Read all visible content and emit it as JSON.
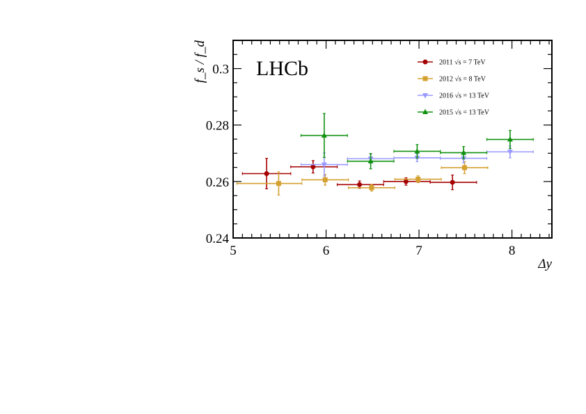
{
  "chart_data": {
    "type": "scatter",
    "title": "",
    "xlabel": "Δy",
    "ylabel": "f_s / f_d",
    "annotation": "LHCb",
    "xlim": [
      5.0,
      8.43
    ],
    "ylim": [
      0.24,
      0.31
    ],
    "x_ticks": [
      "5",
      "6",
      "7",
      "8"
    ],
    "y_ticks": [
      "0.24",
      "0.26",
      "0.28",
      "0.3"
    ],
    "grid": false,
    "legend_position": "top-right",
    "series": [
      {
        "name": "2011 √s = 7 TeV",
        "color": "#a50000",
        "marker": "circle",
        "points": [
          {
            "x": 5.36,
            "xlo": 5.1,
            "xhi": 5.62,
            "y": 0.2628,
            "yerr": 0.0054
          },
          {
            "x": 5.86,
            "xlo": 5.62,
            "xhi": 6.12,
            "y": 0.2652,
            "yerr": 0.0022
          },
          {
            "x": 6.36,
            "xlo": 6.12,
            "xhi": 6.62,
            "y": 0.2589,
            "yerr": 0.0013
          },
          {
            "x": 6.86,
            "xlo": 6.62,
            "xhi": 7.12,
            "y": 0.26,
            "yerr": 0.0013
          },
          {
            "x": 7.36,
            "xlo": 7.12,
            "xhi": 7.62,
            "y": 0.2597,
            "yerr": 0.0026
          }
        ]
      },
      {
        "name": "2012 √s = 8 TeV",
        "color": "#d4a030",
        "marker": "square",
        "points": [
          {
            "x": 5.49,
            "xlo": 5.04,
            "xhi": 5.74,
            "y": 0.2593,
            "yerr": 0.0041
          },
          {
            "x": 5.99,
            "xlo": 5.74,
            "xhi": 6.24,
            "y": 0.2606,
            "yerr": 0.0019
          },
          {
            "x": 6.49,
            "xlo": 6.24,
            "xhi": 6.74,
            "y": 0.2578,
            "yerr": 0.0012
          },
          {
            "x": 6.99,
            "xlo": 6.74,
            "xhi": 7.24,
            "y": 0.2608,
            "yerr": 0.0012
          },
          {
            "x": 7.49,
            "xlo": 7.24,
            "xhi": 7.74,
            "y": 0.2649,
            "yerr": 0.0021
          }
        ]
      },
      {
        "name": "2016 √s = 13 TeV",
        "color": "#9999ff",
        "marker": "triangle-down",
        "points": [
          {
            "x": 5.98,
            "xlo": 5.73,
            "xhi": 6.23,
            "y": 0.266,
            "yerr": 0.0041
          },
          {
            "x": 6.48,
            "xlo": 6.23,
            "xhi": 6.73,
            "y": 0.2681,
            "yerr": 0.0016
          },
          {
            "x": 6.98,
            "xlo": 6.73,
            "xhi": 7.23,
            "y": 0.2684,
            "yerr": 0.0014
          },
          {
            "x": 7.48,
            "xlo": 7.23,
            "xhi": 7.73,
            "y": 0.2682,
            "yerr": 0.0016
          },
          {
            "x": 7.98,
            "xlo": 7.73,
            "xhi": 8.23,
            "y": 0.2705,
            "yerr": 0.0021
          }
        ]
      },
      {
        "name": "2015 √s = 13 TeV",
        "color": "#109010",
        "marker": "triangle-up",
        "points": [
          {
            "x": 5.98,
            "xlo": 5.73,
            "xhi": 6.23,
            "y": 0.2763,
            "yerr": 0.0078
          },
          {
            "x": 6.48,
            "xlo": 6.23,
            "xhi": 6.73,
            "y": 0.2672,
            "yerr": 0.0027
          },
          {
            "x": 6.98,
            "xlo": 6.73,
            "xhi": 7.23,
            "y": 0.2707,
            "yerr": 0.0024
          },
          {
            "x": 7.48,
            "xlo": 7.23,
            "xhi": 7.73,
            "y": 0.2702,
            "yerr": 0.0022
          },
          {
            "x": 7.98,
            "xlo": 7.73,
            "xhi": 8.23,
            "y": 0.2749,
            "yerr": 0.0032
          }
        ]
      }
    ]
  }
}
